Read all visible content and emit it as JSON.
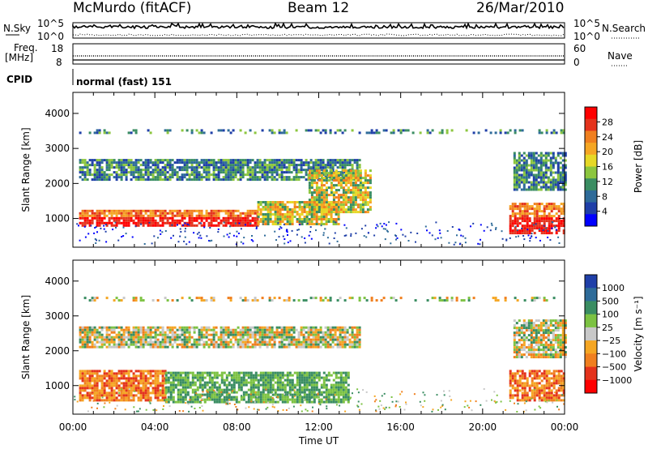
{
  "header": {
    "title": "McMurdo (fitACF)",
    "beam": "Beam 12",
    "date": "26/Mar/2010"
  },
  "status": {
    "nsky_label": "N.Sky",
    "nsky_top": "10^5",
    "nsky_bottom": "10^0",
    "nsearch_label": "N.Search",
    "nsearch_top": "10^5",
    "nsearch_bottom": "10^0",
    "freq_label_1": "Freq.",
    "freq_label_2": "[MHz]",
    "freq_top": "18",
    "freq_bottom": "8",
    "nave_label": "Nave",
    "nave_top": "60",
    "nave_bottom": "0",
    "cpid_label": "CPID",
    "cpid_value": "normal (fast) 151"
  },
  "chart_data": [
    {
      "type": "heatmap",
      "parameter": "Power",
      "ylabel": "Slant Range [km]",
      "ylim": [
        180,
        4600
      ],
      "yticks": [
        "1000",
        "2000",
        "3000",
        "4000"
      ],
      "colorbar_label": "Power [dB]",
      "colorbar_ticks": [
        "4",
        "8",
        "12",
        "16",
        "20",
        "24",
        "28"
      ],
      "colors": [
        "#0000ff",
        "#1f3fa8",
        "#2e6b99",
        "#3a8d62",
        "#8cc63e",
        "#e6d826",
        "#f5a623",
        "#f07f1f",
        "#e4331c",
        "#ff0000"
      ],
      "regions": [
        {
          "t": [
            0.3,
            9.0
          ],
          "r": [
            800,
            1250
          ],
          "level": "high"
        },
        {
          "t": [
            9.0,
            13.0
          ],
          "r": [
            820,
            1500
          ],
          "level": "mid"
        },
        {
          "t": [
            0.3,
            14.0
          ],
          "r": [
            2100,
            2700
          ],
          "level": "low"
        },
        {
          "t": [
            21.3,
            24.0
          ],
          "r": [
            550,
            1450
          ],
          "level": "high"
        },
        {
          "t": [
            21.5,
            24.0
          ],
          "r": [
            1800,
            2900
          ],
          "level": "low"
        },
        {
          "t": [
            11.5,
            14.5
          ],
          "r": [
            1200,
            2400
          ],
          "level": "mid"
        },
        {
          "t": [
            0.3,
            24.0
          ],
          "r": [
            3450,
            3550
          ],
          "level": "low"
        }
      ]
    },
    {
      "type": "heatmap",
      "parameter": "Velocity",
      "xlabel": "Time UT",
      "xticks": [
        "00:00",
        "04:00",
        "08:00",
        "12:00",
        "16:00",
        "20:00",
        "00:00"
      ],
      "ylabel": "Slant Range [km]",
      "ylim": [
        180,
        4600
      ],
      "yticks": [
        "1000",
        "2000",
        "3000",
        "4000"
      ],
      "colorbar_label": "Velocity [m s⁻¹]",
      "colorbar_ticks": [
        "1000",
        "500",
        "100",
        "25",
        "−25",
        "−100",
        "−500",
        "−1000"
      ],
      "colors": [
        "#1f3fa8",
        "#2e6b99",
        "#3a8d62",
        "#7cc242",
        "#c8c8c8",
        "#f5a623",
        "#f07f1f",
        "#e4331c",
        "#ff0000"
      ],
      "regions": [
        {
          "t": [
            0.3,
            4.5
          ],
          "r": [
            600,
            1450
          ],
          "sign": "negative"
        },
        {
          "t": [
            4.5,
            13.5
          ],
          "r": [
            500,
            1400
          ],
          "sign": "positive"
        },
        {
          "t": [
            0.3,
            14.0
          ],
          "r": [
            2100,
            2700
          ],
          "sign": "mixed"
        },
        {
          "t": [
            21.3,
            24.0
          ],
          "r": [
            550,
            1450
          ],
          "sign": "negative"
        },
        {
          "t": [
            21.5,
            24.0
          ],
          "r": [
            1800,
            2900
          ],
          "sign": "mixed"
        },
        {
          "t": [
            0.3,
            24.0
          ],
          "r": [
            3450,
            3550
          ],
          "sign": "mixed"
        }
      ]
    }
  ]
}
